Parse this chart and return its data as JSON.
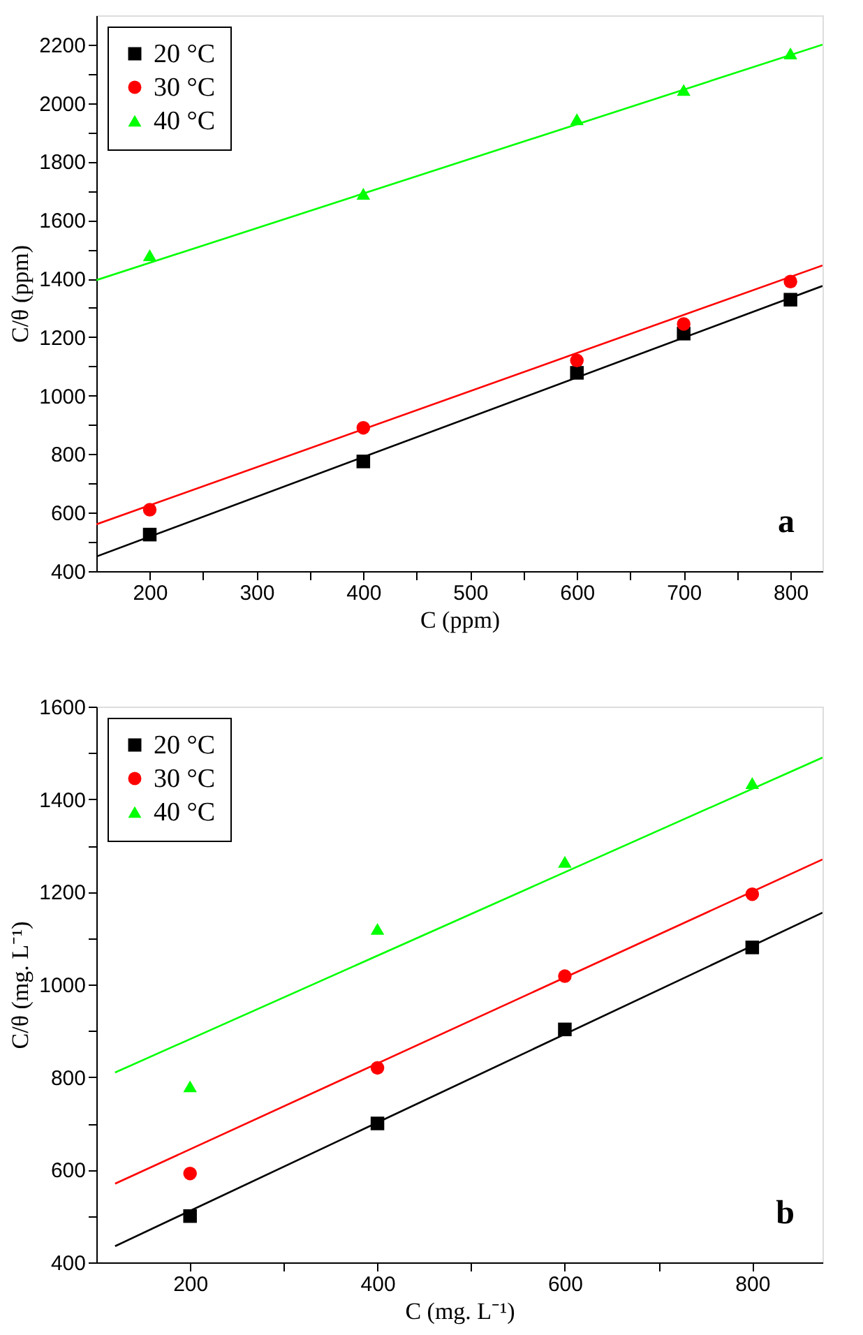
{
  "chart_data": [
    {
      "type": "scatter",
      "xlabel": "C (ppm)",
      "ylabel": "C/θ (ppm)",
      "annotations": [
        "a"
      ],
      "legend": "top left",
      "grid": false,
      "xlim": [
        150,
        830
      ],
      "ylim": [
        400,
        2300
      ],
      "xticks": [
        200,
        {
          "value": 250,
          "label": null
        },
        300,
        {
          "value": 350,
          "label": null
        },
        400,
        {
          "value": 450,
          "label": null
        },
        500,
        {
          "value": 550,
          "label": null
        },
        600,
        {
          "value": 650,
          "label": null
        },
        700,
        {
          "value": 750,
          "label": null
        },
        800
      ],
      "yticks": [
        400,
        {
          "value": 500,
          "label": null
        },
        600,
        {
          "value": 700,
          "label": null
        },
        800,
        {
          "value": 900,
          "label": null
        },
        1000,
        {
          "value": 1100,
          "label": null
        },
        1200,
        {
          "value": 1300,
          "label": null
        },
        1400,
        {
          "value": 1500,
          "label": null
        },
        1600,
        {
          "value": 1700,
          "label": null
        },
        1800,
        {
          "value": 1900,
          "label": null
        },
        2000,
        {
          "value": 2100,
          "label": null
        },
        2200
      ],
      "series": [
        {
          "name": "20 °C",
          "color": "#000000",
          "marker": "square",
          "x": [
            200,
            400,
            600,
            700,
            800
          ],
          "values": [
            525,
            775,
            1078,
            1212,
            1328
          ]
        },
        {
          "name": "30 °C",
          "color": "#ff0000",
          "marker": "circle",
          "x": [
            200,
            400,
            600,
            700,
            800
          ],
          "values": [
            610,
            890,
            1120,
            1245,
            1390
          ]
        },
        {
          "name": "40 °C",
          "color": "#00ff00",
          "marker": "triangle",
          "x": [
            200,
            400,
            600,
            700,
            800
          ],
          "values": [
            1480,
            1690,
            1945,
            2045,
            2170
          ]
        },
        {
          "type": "line",
          "color": "#000000",
          "marker": "none",
          "x": [
            150,
            830
          ],
          "values": [
            450,
            1375
          ]
        },
        {
          "type": "line",
          "color": "#ff0000",
          "marker": "none",
          "x": [
            150,
            830
          ],
          "values": [
            560,
            1445
          ]
        },
        {
          "type": "line",
          "color": "#00ff00",
          "marker": "none",
          "x": [
            150,
            830
          ],
          "values": [
            1395,
            2200
          ]
        }
      ]
    },
    {
      "type": "scatter",
      "xlabel": "C (mg. L⁻¹)",
      "ylabel": "C/θ (mg. L⁻¹)",
      "annotations": [
        "b"
      ],
      "legend": "top left",
      "grid": false,
      "xlim": [
        100,
        875
      ],
      "ylim": [
        400,
        1600
      ],
      "xticks": [
        200,
        {
          "value": 300,
          "label": null
        },
        400,
        {
          "value": 500,
          "label": null
        },
        600,
        {
          "value": 700,
          "label": null
        },
        800
      ],
      "yticks": [
        400,
        {
          "value": 500,
          "label": null
        },
        600,
        {
          "value": 700,
          "label": null
        },
        800,
        {
          "value": 900,
          "label": null
        },
        1000,
        {
          "value": 1100,
          "label": null
        },
        1200,
        {
          "value": 1300,
          "label": null
        },
        1400,
        {
          "value": 1500,
          "label": null
        },
        1600
      ],
      "series": [
        {
          "name": "20 °C",
          "color": "#000000",
          "marker": "square",
          "x": [
            200,
            400,
            600,
            800
          ],
          "values": [
            500,
            700,
            903,
            1080
          ]
        },
        {
          "name": "30 °C",
          "color": "#ff0000",
          "marker": "circle",
          "x": [
            200,
            400,
            600,
            800
          ],
          "values": [
            592,
            820,
            1018,
            1195
          ]
        },
        {
          "name": "40 °C",
          "color": "#00ff00",
          "marker": "triangle",
          "x": [
            200,
            400,
            600,
            800
          ],
          "values": [
            780,
            1120,
            1265,
            1435
          ]
        },
        {
          "type": "line",
          "color": "#000000",
          "marker": "none",
          "x": [
            120,
            875
          ],
          "values": [
            435,
            1155
          ]
        },
        {
          "type": "line",
          "color": "#ff0000",
          "marker": "none",
          "x": [
            120,
            875
          ],
          "values": [
            570,
            1270
          ]
        },
        {
          "type": "line",
          "color": "#00ff00",
          "marker": "none",
          "x": [
            120,
            875
          ],
          "values": [
            810,
            1490
          ]
        }
      ]
    }
  ]
}
